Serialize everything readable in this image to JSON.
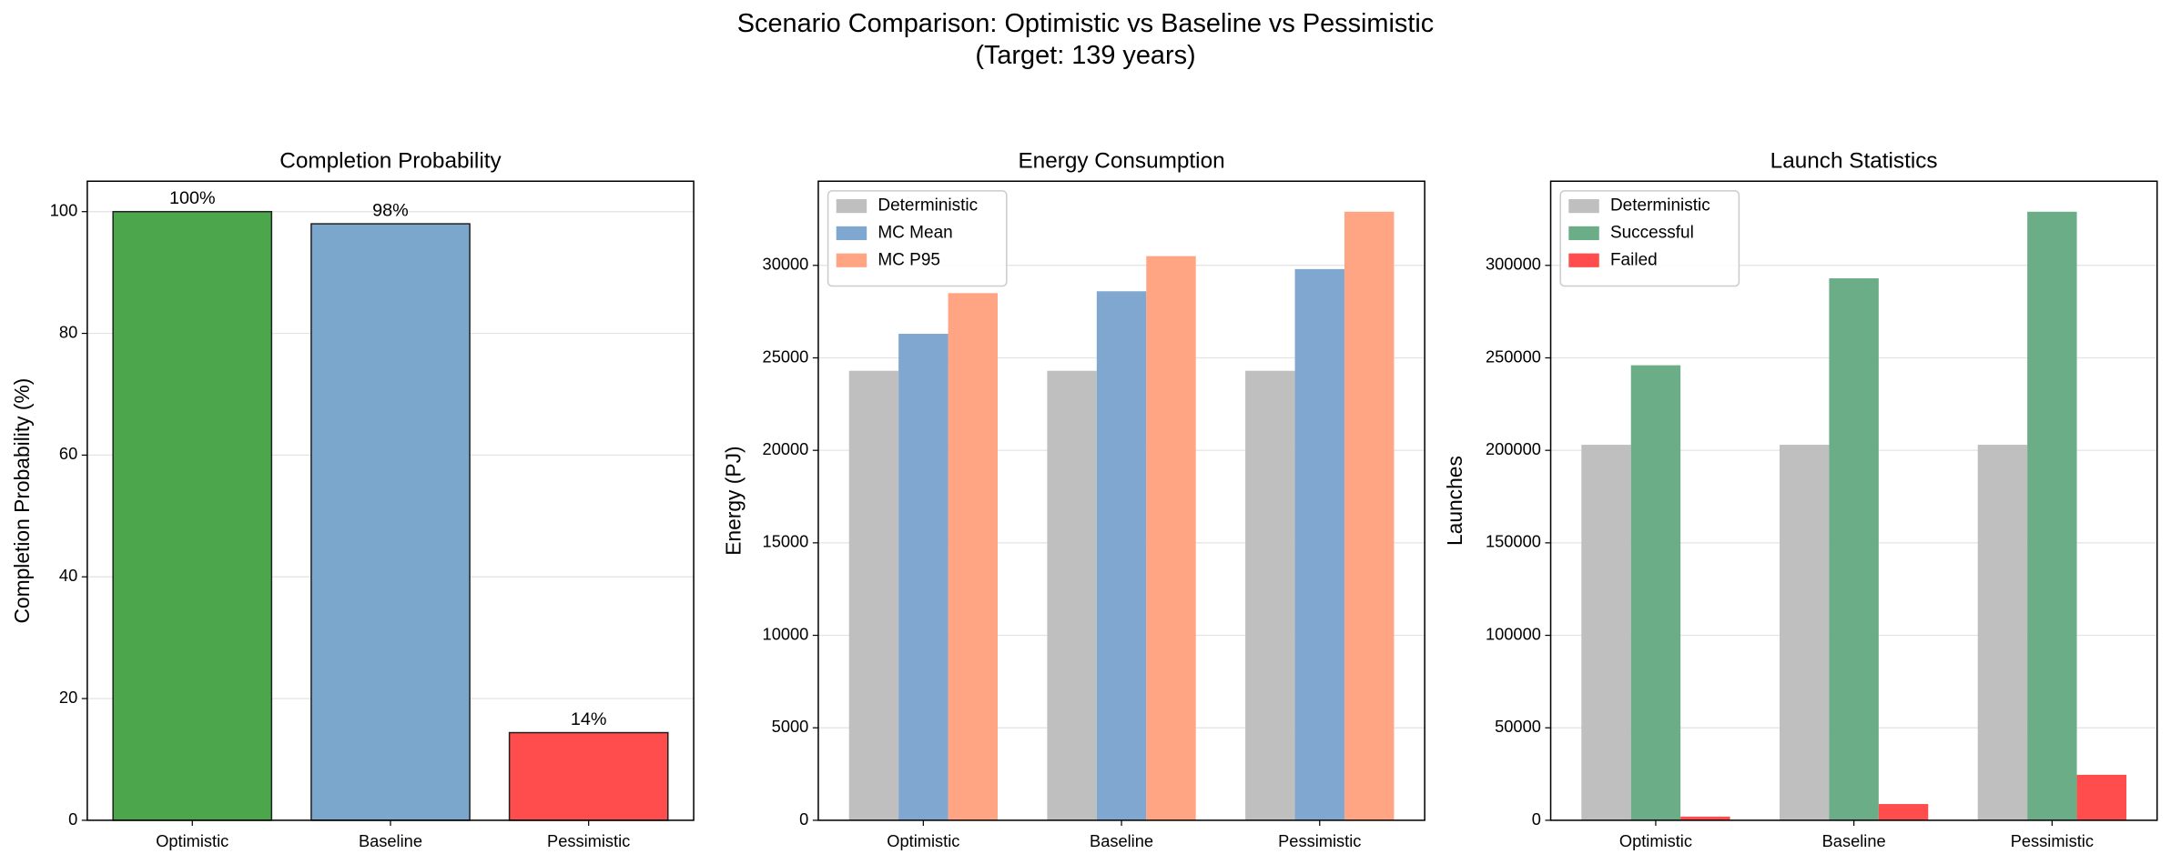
{
  "title": "Scenario Comparison: Optimistic vs Baseline vs Pessimistic",
  "subtitle": "(Target: 139 years)",
  "chart_data": [
    {
      "type": "bar",
      "title": "Completion Probability",
      "ylabel": "Completion Probability (%)",
      "categories": [
        "Optimistic",
        "Baseline",
        "Pessimistic"
      ],
      "values": [
        100,
        98,
        14.4
      ],
      "value_labels": [
        "100%",
        "98%",
        "14%"
      ],
      "colors": [
        "#4ca64c",
        "#7ba7cc",
        "#ff4d4d"
      ],
      "edgecolor": "#222222",
      "ylim": [
        0,
        105
      ],
      "yticks": [
        0,
        20,
        40,
        60,
        80,
        100
      ],
      "grid": true
    },
    {
      "type": "grouped-bar",
      "title": "Energy Consumption",
      "ylabel": "Energy (PJ)",
      "categories": [
        "Optimistic",
        "Baseline",
        "Pessimistic"
      ],
      "series": [
        {
          "name": "Deterministic",
          "color": "#bfbfbf",
          "values": [
            24300,
            24300,
            24300
          ]
        },
        {
          "name": "MC Mean",
          "color": "#7fa7cf",
          "values": [
            26300,
            28600,
            29800
          ]
        },
        {
          "name": "MC P95",
          "color": "#ffa584",
          "values": [
            28500,
            30500,
            32900
          ]
        }
      ],
      "ylim": [
        0,
        34550
      ],
      "yticks": [
        0,
        5000,
        10000,
        15000,
        20000,
        25000,
        30000
      ],
      "grid": true,
      "legend": "upper left"
    },
    {
      "type": "grouped-bar",
      "title": "Launch Statistics",
      "ylabel": "Launches",
      "categories": [
        "Optimistic",
        "Baseline",
        "Pessimistic"
      ],
      "series": [
        {
          "name": "Deterministic",
          "color": "#bfbfbf",
          "values": [
            203000,
            203000,
            203000
          ]
        },
        {
          "name": "Successful",
          "color": "#6aad87",
          "values": [
            246000,
            293000,
            329000
          ]
        },
        {
          "name": "Failed",
          "color": "#ff4d4d",
          "values": [
            2000,
            8800,
            24600
          ]
        }
      ],
      "ylim": [
        0,
        345500
      ],
      "yticks": [
        0,
        50000,
        100000,
        150000,
        200000,
        250000,
        300000
      ],
      "grid": true,
      "legend": "upper left"
    }
  ]
}
